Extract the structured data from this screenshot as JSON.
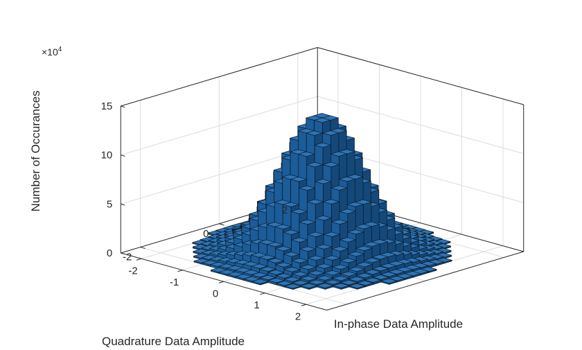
{
  "chart_data": {
    "type": "histogram3d",
    "title": "",
    "xlabel": "In-phase Data Amplitude",
    "ylabel": "Quadrature Data Amplitude",
    "zlabel": "Number of Occurances",
    "z_exponent_base": "×10",
    "z_exponent_power": "4",
    "x_ticks": [
      "-2",
      "-1",
      "0",
      "1",
      "2"
    ],
    "y_ticks": [
      "-2",
      "0",
      "2"
    ],
    "z_ticks": [
      "0",
      "5",
      "10",
      "15"
    ],
    "xlim": [
      -2.5,
      2.5
    ],
    "ylim": [
      -2.5,
      2.5
    ],
    "zlim": [
      0,
      150000
    ],
    "bin_width": 0.2,
    "support_radius": 2.2,
    "peak_count": 140000,
    "distribution": "2-D Gaussian centered at (0,0), sigma ≈ 0.7 per axis",
    "bar_color": "#2166ac",
    "grid": true,
    "box": true
  }
}
